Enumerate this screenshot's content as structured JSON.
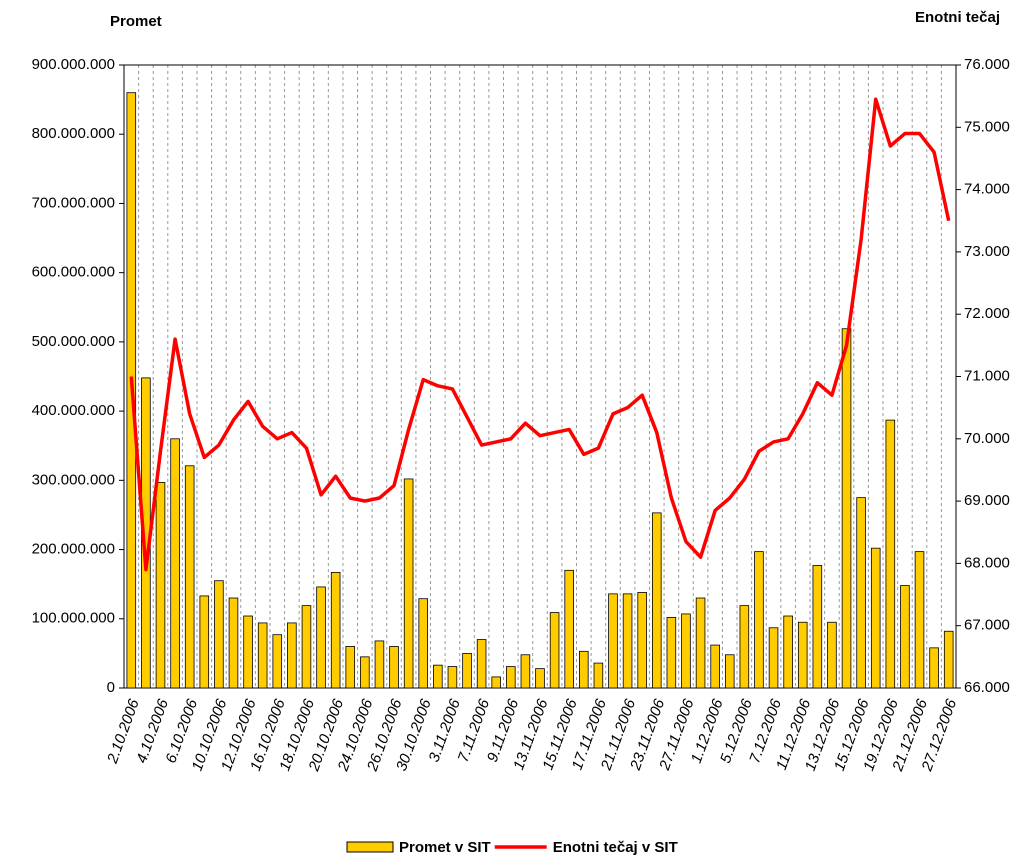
{
  "chart_data": {
    "type": "bar-line",
    "y_label": "Promet",
    "y2_label": "Enotni tečaj",
    "categories": [
      "2.10.2006",
      null,
      "4.10.2006",
      null,
      "6.10.2006",
      null,
      "10.10.2006",
      null,
      "12.10.2006",
      null,
      "16.10.2006",
      null,
      "18.10.2006",
      null,
      "20.10.2006",
      null,
      "24.10.2006",
      null,
      "26.10.2006",
      null,
      "30.10.2006",
      null,
      "3.11.2006",
      null,
      "7.11.2006",
      null,
      "9.11.2006",
      null,
      "13.11.2006",
      null,
      "15.11.2006",
      null,
      "17.11.2006",
      null,
      "21.11.2006",
      null,
      "23.11.2006",
      null,
      "27.11.2006",
      null,
      "1.12.2006",
      null,
      "5.12.2006",
      null,
      "7.12.2006",
      null,
      "11.12.2006",
      null,
      "13.12.2006",
      null,
      "15.12.2006",
      null,
      "19.12.2006",
      null,
      "21.12.2006",
      null,
      "27.12.2006"
    ],
    "series": [
      {
        "name": "Promet v SIT",
        "kind": "bar",
        "color": "#ffcc00",
        "values": [
          860000000,
          448000000,
          297000000,
          360000000,
          321000000,
          133000000,
          155000000,
          130000000,
          104000000,
          94000000,
          77000000,
          94000000,
          119000000,
          146000000,
          167000000,
          60000000,
          45000000,
          68000000,
          60000000,
          302000000,
          129000000,
          33000000,
          31000000,
          50000000,
          70000000,
          16000000,
          31000000,
          48000000,
          28000000,
          109000000,
          170000000,
          53000000,
          36000000,
          136000000,
          136000000,
          138000000,
          253000000,
          102000000,
          107000000,
          130000000,
          62000000,
          48000000,
          119000000,
          197000000,
          87000000,
          104000000,
          95000000,
          177000000,
          95000000,
          519000000,
          275000000,
          202000000,
          387000000,
          148000000,
          197000000,
          58000000,
          82000000
        ]
      },
      {
        "name": "Enotni tečaj v SIT",
        "kind": "line",
        "axis": "y2",
        "color": "#ff0000",
        "values": [
          71.0,
          67.9,
          69.8,
          71.6,
          70.4,
          69.7,
          69.9,
          70.3,
          70.6,
          70.2,
          70.0,
          70.1,
          69.85,
          69.1,
          69.4,
          69.05,
          69.0,
          69.05,
          69.25,
          70.15,
          70.95,
          70.85,
          70.8,
          70.35,
          69.9,
          69.95,
          70.0,
          70.25,
          70.05,
          70.1,
          70.15,
          69.75,
          69.85,
          70.4,
          70.5,
          70.7,
          70.1,
          69.05,
          68.35,
          68.1,
          68.85,
          69.05,
          69.35,
          69.8,
          69.95,
          70.0,
          70.4,
          70.9,
          70.7,
          71.5,
          73.2,
          75.45,
          74.7,
          74.9,
          74.9,
          74.6,
          73.5
        ]
      }
    ],
    "ylim": [
      0,
      900000000
    ],
    "yticks": [
      0,
      {
        "value": 100000000,
        "label": "100.000.000"
      },
      {
        "value": 200000000,
        "label": "200.000.000"
      },
      {
        "value": 300000000,
        "label": "300.000.000"
      },
      {
        "value": 400000000,
        "label": "400.000.000"
      },
      {
        "value": 500000000,
        "label": "500.000.000"
      },
      {
        "value": 600000000,
        "label": "600.000.000"
      },
      {
        "value": 700000000,
        "label": "700.000.000"
      },
      {
        "value": 800000000,
        "label": "800.000.000"
      },
      {
        "value": 900000000,
        "label": "900.000.000"
      }
    ],
    "y2lim": [
      66,
      76
    ],
    "y2ticks": [
      {
        "value": 66,
        "label": "66.000"
      },
      {
        "value": 67,
        "label": "67.000"
      },
      {
        "value": 68,
        "label": "68.000"
      },
      {
        "value": 69,
        "label": "69.000"
      },
      {
        "value": 70,
        "label": "70.000"
      },
      {
        "value": 71,
        "label": "71.000"
      },
      {
        "value": 72,
        "label": "72.000"
      },
      {
        "value": 73,
        "label": "73.000"
      },
      {
        "value": 74,
        "label": "74.000"
      },
      {
        "value": 75,
        "label": "75.000"
      },
      {
        "value": 76,
        "label": "76.000"
      }
    ],
    "legend": "bottom"
  }
}
